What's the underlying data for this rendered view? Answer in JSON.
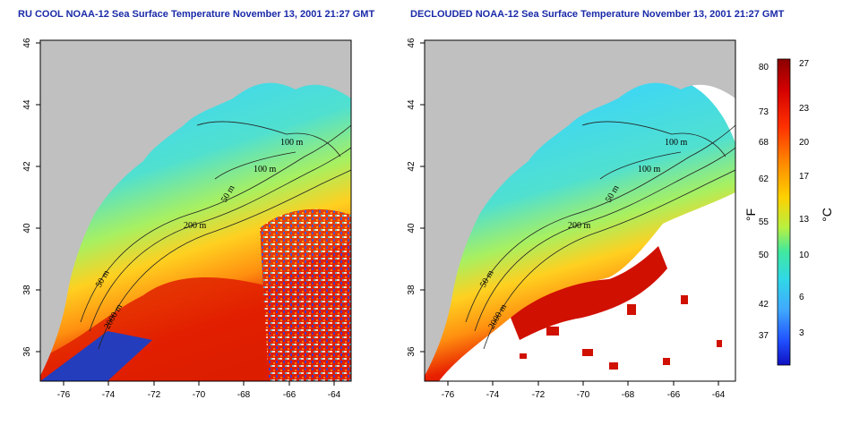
{
  "left_panel": {
    "title": "RU COOL NOAA-12 Sea Surface Temperature November 13, 2001 21:27 GMT",
    "x_ticks": [
      "-76",
      "-74",
      "-72",
      "-70",
      "-68",
      "-66",
      "-64"
    ],
    "y_ticks": [
      "46",
      "44",
      "42",
      "40",
      "38",
      "36"
    ],
    "contours": [
      "100 m",
      "100 m",
      "50 m",
      "200 m",
      "50 m",
      "2000 m"
    ]
  },
  "right_panel": {
    "title": "DECLOUDED NOAA-12 Sea Surface Temperature November 13, 2001 21:27 GMT",
    "x_ticks": [
      "-76",
      "-74",
      "-72",
      "-70",
      "-68",
      "-66",
      "-64"
    ],
    "y_ticks": [
      "46",
      "44",
      "42",
      "40",
      "38",
      "36"
    ],
    "contours": [
      "100 m",
      "100 m",
      "50 m",
      "200 m",
      "50 m",
      "2000 m"
    ]
  },
  "colorbar": {
    "fahrenheit_label": "°F",
    "celsius_label": "°C",
    "fahrenheit_ticks": [
      "80",
      "73",
      "68",
      "62",
      "55",
      "50",
      "42",
      "37"
    ],
    "celsius_ticks": [
      "27",
      "23",
      "20",
      "17",
      "13",
      "10",
      "6",
      "3"
    ],
    "colors": [
      "#8b0000",
      "#d40000",
      "#ff3000",
      "#ff8a00",
      "#ffd000",
      "#b8f040",
      "#40e8a0",
      "#30d8e8",
      "#40a8ff",
      "#2050ff",
      "#1010c0"
    ]
  },
  "colors": {
    "land": "#c0c0c0",
    "title": "#1a2aa8"
  }
}
